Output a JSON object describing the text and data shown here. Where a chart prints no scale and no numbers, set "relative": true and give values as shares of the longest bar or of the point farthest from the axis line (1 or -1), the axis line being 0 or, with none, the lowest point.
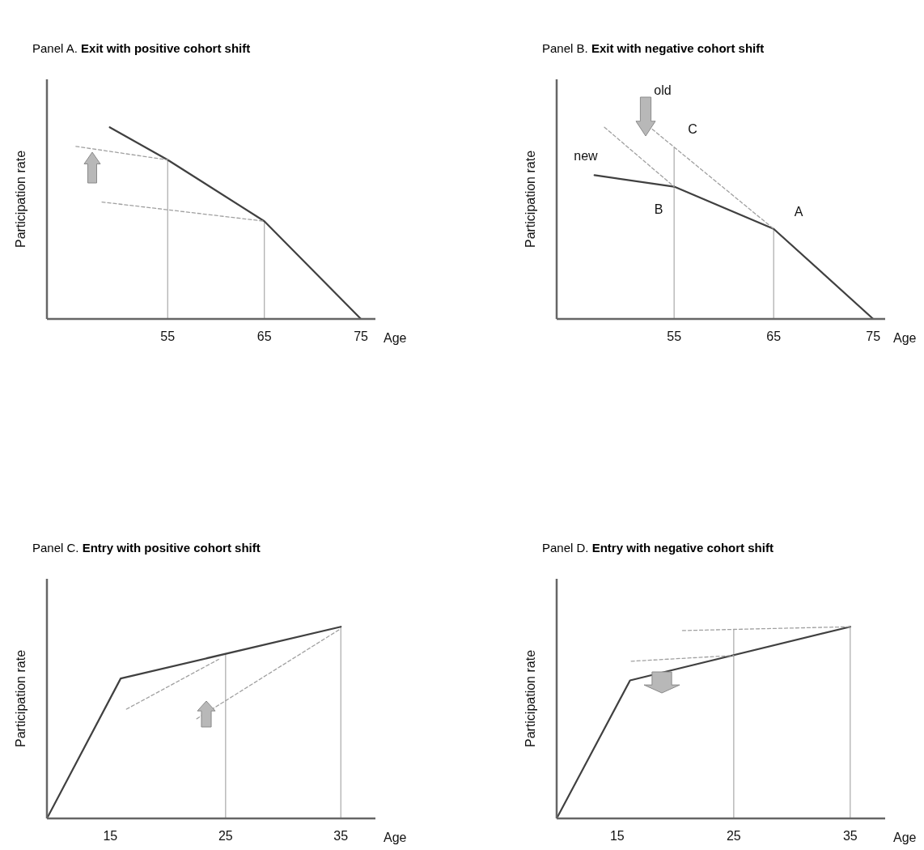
{
  "chart_data": [
    {
      "type": "line",
      "title": "Panel A. Exit with positive cohort shift",
      "xlabel": "Age",
      "ylabel": "Participation rate",
      "relative": true,
      "grid": false,
      "tick_labels": "x",
      "marker": "none",
      "xlim": [
        42.5,
        76.5
      ],
      "xticks": [
        55,
        65,
        75
      ],
      "ref_lines": [
        {
          "axis": "x",
          "value": 55,
          "color": "#b0b0b0"
        },
        {
          "axis": "x",
          "value": 65,
          "color": "#b0b0b0"
        }
      ],
      "series": [
        {
          "type": "line",
          "color": "#404040",
          "line_style": "solid",
          "x": [
            49,
            55,
            65,
            75
          ],
          "values": [
            1,
            0.83,
            0.51,
            0
          ]
        },
        {
          "type": "line",
          "color": "#a0a0a0",
          "line_style": "dashed",
          "x": [
            45.5,
            55
          ],
          "values": [
            0.9,
            0.83
          ]
        },
        {
          "type": "line",
          "color": "#a0a0a0",
          "line_style": "dashed",
          "x": [
            48.2,
            65
          ],
          "values": [
            0.61,
            0.51
          ]
        }
      ]
    },
    {
      "type": "line",
      "title": "Panel B. Exit with negative cohort shift",
      "xlabel": "Age",
      "ylabel": "Participation rate",
      "relative": true,
      "grid": false,
      "tick_labels": "x",
      "marker": "none",
      "xlim": [
        43.2,
        76.2
      ],
      "xticks": [
        55,
        65,
        75
      ],
      "annotations": [
        "old",
        "C",
        "new",
        "B",
        "A"
      ],
      "ref_lines": [
        {
          "axis": "x",
          "value": 55,
          "color": "#b0b0b0"
        },
        {
          "axis": "x",
          "value": 65,
          "color": "#b0b0b0"
        }
      ],
      "series": [
        {
          "type": "line",
          "color": "#404040",
          "line_style": "solid",
          "x": [
            47,
            55,
            65,
            75
          ],
          "values": [
            0.75,
            0.69,
            0.47,
            0
          ]
        },
        {
          "type": "line",
          "color": "#a0a0a0",
          "line_style": "dashed",
          "x": [
            48,
            55
          ],
          "values": [
            1,
            0.69
          ]
        },
        {
          "type": "line",
          "color": "#a0a0a0",
          "line_style": "dashed",
          "x": [
            52.8,
            65
          ],
          "values": [
            0.99,
            0.47
          ]
        }
      ]
    },
    {
      "type": "line",
      "title": "Panel C. Entry with positive cohort shift",
      "xlabel": "Age",
      "ylabel": "Participation rate",
      "relative": true,
      "grid": false,
      "tick_labels": "x",
      "marker": "none",
      "xlim": [
        9.5,
        38
      ],
      "xticks": [
        15,
        25,
        35
      ],
      "ref_lines": [
        {
          "axis": "x",
          "value": 25,
          "color": "#b0b0b0"
        },
        {
          "axis": "x",
          "value": 35,
          "color": "#b0b0b0"
        }
      ],
      "series": [
        {
          "type": "line",
          "color": "#404040",
          "line_style": "solid",
          "x": [
            9.5,
            15.9,
            35
          ],
          "values": [
            0,
            0.73,
            1
          ]
        },
        {
          "type": "line",
          "color": "#a0a0a0",
          "line_style": "dashed",
          "x": [
            16.4,
            24.4
          ],
          "values": [
            0.57,
            0.83
          ]
        },
        {
          "type": "line",
          "color": "#a0a0a0",
          "line_style": "dashed",
          "x": [
            22.5,
            35
          ],
          "values": [
            0.52,
            0.99
          ]
        }
      ]
    },
    {
      "type": "line",
      "title": "Panel D. Entry with negative cohort shift",
      "xlabel": "Age",
      "ylabel": "Participation rate",
      "relative": true,
      "grid": false,
      "tick_labels": "x",
      "marker": "none",
      "xlim": [
        9.8,
        38
      ],
      "xticks": [
        15,
        25,
        35
      ],
      "ref_lines": [
        {
          "axis": "x",
          "value": 25,
          "color": "#b0b0b0"
        },
        {
          "axis": "x",
          "value": 35,
          "color": "#b0b0b0"
        }
      ],
      "series": [
        {
          "type": "line",
          "color": "#404040",
          "line_style": "solid",
          "x": [
            9.8,
            16.1,
            35
          ],
          "values": [
            0,
            0.72,
            1
          ]
        },
        {
          "type": "line",
          "color": "#a0a0a0",
          "line_style": "dashed",
          "x": [
            20.6,
            35
          ],
          "values": [
            0.98,
            1
          ]
        },
        {
          "type": "line",
          "color": "#a0a0a0",
          "line_style": "dashed",
          "x": [
            16.2,
            25
          ],
          "values": [
            0.82,
            0.85
          ]
        }
      ]
    }
  ]
}
